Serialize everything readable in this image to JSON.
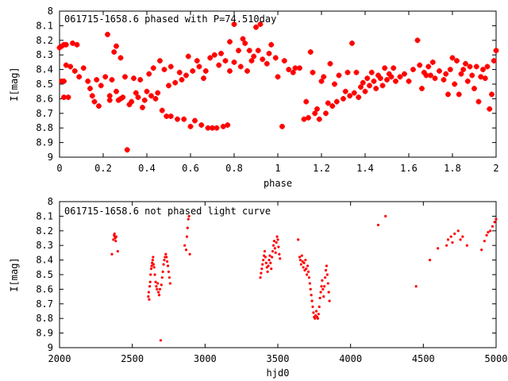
{
  "chart_data": [
    {
      "type": "scatter",
      "title": "061715-1658.6 phased with P=74.510day",
      "xlabel": "phase",
      "ylabel": "I[mag]",
      "xlim": [
        0,
        2
      ],
      "ylim": [
        9,
        8
      ],
      "y_inverted": true,
      "xticks": [
        "0",
        "0.2",
        "0.4",
        "0.6",
        "0.8",
        "1",
        "1.2",
        "1.4",
        "1.6",
        "1.8",
        "2"
      ],
      "yticks": [
        "8",
        "8.1",
        "8.2",
        "8.3",
        "8.4",
        "8.5",
        "8.6",
        "8.7",
        "8.8",
        "8.9",
        "9"
      ],
      "marker_color": "#ff0000",
      "points": [
        [
          0.0,
          8.25
        ],
        [
          0.01,
          8.24
        ],
        [
          0.02,
          8.23
        ],
        [
          0.03,
          8.23
        ],
        [
          0.01,
          8.48
        ],
        [
          0.02,
          8.48
        ],
        [
          0.03,
          8.37
        ],
        [
          0.05,
          8.38
        ],
        [
          0.02,
          8.59
        ],
        [
          0.04,
          8.59
        ],
        [
          0.06,
          8.22
        ],
        [
          0.08,
          8.23
        ],
        [
          0.07,
          8.41
        ],
        [
          0.09,
          8.45
        ],
        [
          0.11,
          8.39
        ],
        [
          0.13,
          8.48
        ],
        [
          0.14,
          8.53
        ],
        [
          0.15,
          8.58
        ],
        [
          0.16,
          8.62
        ],
        [
          0.17,
          8.47
        ],
        [
          0.18,
          8.65
        ],
        [
          0.19,
          8.51
        ],
        [
          0.21,
          8.45
        ],
        [
          0.22,
          8.16
        ],
        [
          0.23,
          8.58
        ],
        [
          0.23,
          8.61
        ],
        [
          0.24,
          8.47
        ],
        [
          0.25,
          8.28
        ],
        [
          0.26,
          8.24
        ],
        [
          0.26,
          8.55
        ],
        [
          0.27,
          8.61
        ],
        [
          0.28,
          8.6
        ],
        [
          0.28,
          8.32
        ],
        [
          0.29,
          8.59
        ],
        [
          0.3,
          8.45
        ],
        [
          0.31,
          8.95
        ],
        [
          0.32,
          8.64
        ],
        [
          0.33,
          8.62
        ],
        [
          0.34,
          8.46
        ],
        [
          0.35,
          8.56
        ],
        [
          0.36,
          8.59
        ],
        [
          0.37,
          8.47
        ],
        [
          0.38,
          8.66
        ],
        [
          0.39,
          8.61
        ],
        [
          0.4,
          8.55
        ],
        [
          0.41,
          8.43
        ],
        [
          0.42,
          8.58
        ],
        [
          0.43,
          8.39
        ],
        [
          0.44,
          8.6
        ],
        [
          0.45,
          8.56
        ],
        [
          0.46,
          8.34
        ],
        [
          0.47,
          8.68
        ],
        [
          0.48,
          8.4
        ],
        [
          0.49,
          8.72
        ],
        [
          0.5,
          8.51
        ],
        [
          0.51,
          8.38
        ],
        [
          0.51,
          8.72
        ],
        [
          0.53,
          8.49
        ],
        [
          0.54,
          8.74
        ],
        [
          0.55,
          8.42
        ],
        [
          0.56,
          8.47
        ],
        [
          0.57,
          8.74
        ],
        [
          0.58,
          8.44
        ],
        [
          0.59,
          8.31
        ],
        [
          0.6,
          8.79
        ],
        [
          0.61,
          8.41
        ],
        [
          0.62,
          8.75
        ],
        [
          0.63,
          8.34
        ],
        [
          0.64,
          8.38
        ],
        [
          0.65,
          8.78
        ],
        [
          0.66,
          8.46
        ],
        [
          0.67,
          8.41
        ],
        [
          0.68,
          8.8
        ],
        [
          0.69,
          8.32
        ],
        [
          0.7,
          8.8
        ],
        [
          0.71,
          8.3
        ],
        [
          0.72,
          8.8
        ],
        [
          0.73,
          8.37
        ],
        [
          0.74,
          8.29
        ],
        [
          0.75,
          8.79
        ],
        [
          0.76,
          8.34
        ],
        [
          0.77,
          8.78
        ],
        [
          0.78,
          8.21
        ],
        [
          0.78,
          8.41
        ],
        [
          0.8,
          8.35
        ],
        [
          0.8,
          8.09
        ],
        [
          0.82,
          8.27
        ],
        [
          0.83,
          8.38
        ],
        [
          0.84,
          8.19
        ],
        [
          0.85,
          8.22
        ],
        [
          0.86,
          8.41
        ],
        [
          0.87,
          8.27
        ],
        [
          0.88,
          8.34
        ],
        [
          0.89,
          8.31
        ],
        [
          0.9,
          8.11
        ],
        [
          0.91,
          8.27
        ],
        [
          0.92,
          8.09
        ],
        [
          0.93,
          8.33
        ],
        [
          0.95,
          8.36
        ],
        [
          0.96,
          8.29
        ],
        [
          0.97,
          8.23
        ],
        [
          0.99,
          8.32
        ],
        [
          1.0,
          8.45
        ],
        [
          1.02,
          8.79
        ],
        [
          1.03,
          8.34
        ],
        [
          1.05,
          8.4
        ],
        [
          1.07,
          8.42
        ],
        [
          1.08,
          8.39
        ],
        [
          1.1,
          8.39
        ],
        [
          1.12,
          8.74
        ],
        [
          1.13,
          8.62
        ],
        [
          1.14,
          8.73
        ],
        [
          1.15,
          8.28
        ],
        [
          1.16,
          8.42
        ],
        [
          1.17,
          8.7
        ],
        [
          1.18,
          8.67
        ],
        [
          1.19,
          8.74
        ],
        [
          1.2,
          8.48
        ],
        [
          1.21,
          8.45
        ],
        [
          1.22,
          8.7
        ],
        [
          1.23,
          8.63
        ],
        [
          1.24,
          8.36
        ],
        [
          1.25,
          8.65
        ],
        [
          1.26,
          8.5
        ],
        [
          1.27,
          8.62
        ],
        [
          1.28,
          8.44
        ],
        [
          1.3,
          8.6
        ],
        [
          1.31,
          8.55
        ],
        [
          1.32,
          8.42
        ],
        [
          1.33,
          8.58
        ],
        [
          1.34,
          8.22
        ],
        [
          1.35,
          8.56
        ],
        [
          1.36,
          8.42
        ],
        [
          1.37,
          8.59
        ],
        [
          1.38,
          8.52
        ],
        [
          1.39,
          8.49
        ],
        [
          1.4,
          8.55
        ],
        [
          1.41,
          8.46
        ],
        [
          1.42,
          8.51
        ],
        [
          1.43,
          8.42
        ],
        [
          1.44,
          8.48
        ],
        [
          1.45,
          8.53
        ],
        [
          1.46,
          8.44
        ],
        [
          1.47,
          8.46
        ],
        [
          1.48,
          8.51
        ],
        [
          1.49,
          8.39
        ],
        [
          1.5,
          8.47
        ],
        [
          1.51,
          8.43
        ],
        [
          1.52,
          8.45
        ],
        [
          1.53,
          8.39
        ],
        [
          1.54,
          8.48
        ],
        [
          1.56,
          8.45
        ],
        [
          1.58,
          8.43
        ],
        [
          1.6,
          8.48
        ],
        [
          1.62,
          8.4
        ],
        [
          1.64,
          8.2
        ],
        [
          1.65,
          8.37
        ],
        [
          1.66,
          8.53
        ],
        [
          1.67,
          8.42
        ],
        [
          1.68,
          8.44
        ],
        [
          1.69,
          8.38
        ],
        [
          1.7,
          8.44
        ],
        [
          1.71,
          8.35
        ],
        [
          1.72,
          8.46
        ],
        [
          1.74,
          8.41
        ],
        [
          1.76,
          8.47
        ],
        [
          1.77,
          8.43
        ],
        [
          1.78,
          8.57
        ],
        [
          1.79,
          8.4
        ],
        [
          1.8,
          8.32
        ],
        [
          1.81,
          8.5
        ],
        [
          1.82,
          8.34
        ],
        [
          1.83,
          8.57
        ],
        [
          1.84,
          8.43
        ],
        [
          1.85,
          8.4
        ],
        [
          1.86,
          8.36
        ],
        [
          1.87,
          8.48
        ],
        [
          1.88,
          8.38
        ],
        [
          1.89,
          8.44
        ],
        [
          1.9,
          8.53
        ],
        [
          1.91,
          8.38
        ],
        [
          1.92,
          8.62
        ],
        [
          1.93,
          8.45
        ],
        [
          1.94,
          8.4
        ],
        [
          1.95,
          8.46
        ],
        [
          1.96,
          8.38
        ],
        [
          1.97,
          8.67
        ],
        [
          1.98,
          8.57
        ],
        [
          1.99,
          8.34
        ],
        [
          2.0,
          8.27
        ]
      ]
    },
    {
      "type": "scatter",
      "title": "061715-1658.6 not phased light curve",
      "xlabel": "hjd0",
      "ylabel": "I[mag]",
      "xlim": [
        2000,
        5000
      ],
      "ylim": [
        9,
        8
      ],
      "y_inverted": true,
      "xticks": [
        "2000",
        "2500",
        "3000",
        "3500",
        "4000",
        "4500",
        "5000"
      ],
      "yticks": [
        "8",
        "8.1",
        "8.2",
        "8.3",
        "8.4",
        "8.5",
        "8.6",
        "8.7",
        "8.8",
        "8.9",
        "9"
      ],
      "marker_color": "#ff0000",
      "points": [
        [
          2360,
          8.36
        ],
        [
          2370,
          8.26
        ],
        [
          2375,
          8.23
        ],
        [
          2378,
          8.22
        ],
        [
          2380,
          8.24
        ],
        [
          2383,
          8.25
        ],
        [
          2386,
          8.27
        ],
        [
          2390,
          8.24
        ],
        [
          2400,
          8.34
        ],
        [
          2610,
          8.65
        ],
        [
          2613,
          8.62
        ],
        [
          2616,
          8.67
        ],
        [
          2620,
          8.58
        ],
        [
          2623,
          8.55
        ],
        [
          2626,
          8.5
        ],
        [
          2630,
          8.46
        ],
        [
          2633,
          8.44
        ],
        [
          2636,
          8.42
        ],
        [
          2640,
          8.4
        ],
        [
          2643,
          8.38
        ],
        [
          2646,
          8.43
        ],
        [
          2650,
          8.45
        ],
        [
          2655,
          8.5
        ],
        [
          2660,
          8.55
        ],
        [
          2665,
          8.58
        ],
        [
          2670,
          8.6
        ],
        [
          2675,
          8.56
        ],
        [
          2680,
          8.62
        ],
        [
          2685,
          8.64
        ],
        [
          2690,
          8.6
        ],
        [
          2695,
          8.95
        ],
        [
          2700,
          8.57
        ],
        [
          2705,
          8.52
        ],
        [
          2710,
          8.48
        ],
        [
          2715,
          8.43
        ],
        [
          2720,
          8.4
        ],
        [
          2725,
          8.38
        ],
        [
          2730,
          8.36
        ],
        [
          2735,
          8.38
        ],
        [
          2740,
          8.41
        ],
        [
          2745,
          8.44
        ],
        [
          2750,
          8.48
        ],
        [
          2755,
          8.52
        ],
        [
          2760,
          8.56
        ],
        [
          2860,
          8.3
        ],
        [
          2870,
          8.33
        ],
        [
          2875,
          8.24
        ],
        [
          2880,
          8.18
        ],
        [
          2885,
          8.12
        ],
        [
          2890,
          8.1
        ],
        [
          2895,
          8.36
        ],
        [
          3380,
          8.52
        ],
        [
          3385,
          8.49
        ],
        [
          3390,
          8.46
        ],
        [
          3395,
          8.43
        ],
        [
          3400,
          8.4
        ],
        [
          3405,
          8.37
        ],
        [
          3410,
          8.34
        ],
        [
          3415,
          8.38
        ],
        [
          3420,
          8.42
        ],
        [
          3425,
          8.45
        ],
        [
          3430,
          8.48
        ],
        [
          3435,
          8.44
        ],
        [
          3440,
          8.4
        ],
        [
          3445,
          8.37
        ],
        [
          3450,
          8.42
        ],
        [
          3455,
          8.46
        ],
        [
          3460,
          8.38
        ],
        [
          3465,
          8.34
        ],
        [
          3470,
          8.3
        ],
        [
          3475,
          8.27
        ],
        [
          3480,
          8.32
        ],
        [
          3485,
          8.35
        ],
        [
          3490,
          8.28
        ],
        [
          3495,
          8.24
        ],
        [
          3500,
          8.26
        ],
        [
          3505,
          8.31
        ],
        [
          3510,
          8.36
        ],
        [
          3515,
          8.39
        ],
        [
          3640,
          8.26
        ],
        [
          3650,
          8.38
        ],
        [
          3655,
          8.4
        ],
        [
          3660,
          8.43
        ],
        [
          3665,
          8.37
        ],
        [
          3670,
          8.41
        ],
        [
          3675,
          8.45
        ],
        [
          3680,
          8.42
        ],
        [
          3685,
          8.47
        ],
        [
          3690,
          8.4
        ],
        [
          3695,
          8.46
        ],
        [
          3700,
          8.5
        ],
        [
          3705,
          8.44
        ],
        [
          3710,
          8.48
        ],
        [
          3715,
          8.52
        ],
        [
          3720,
          8.56
        ],
        [
          3725,
          8.6
        ],
        [
          3730,
          8.64
        ],
        [
          3735,
          8.68
        ],
        [
          3740,
          8.72
        ],
        [
          3745,
          8.76
        ],
        [
          3750,
          8.79
        ],
        [
          3755,
          8.8
        ],
        [
          3760,
          8.78
        ],
        [
          3765,
          8.75
        ],
        [
          3770,
          8.79
        ],
        [
          3775,
          8.8
        ],
        [
          3780,
          8.77
        ],
        [
          3785,
          8.72
        ],
        [
          3790,
          8.66
        ],
        [
          3795,
          8.62
        ],
        [
          3800,
          8.58
        ],
        [
          3805,
          8.54
        ],
        [
          3810,
          8.6
        ],
        [
          3815,
          8.65
        ],
        [
          3820,
          8.58
        ],
        [
          3825,
          8.52
        ],
        [
          3830,
          8.47
        ],
        [
          3835,
          8.44
        ],
        [
          3840,
          8.5
        ],
        [
          3845,
          8.56
        ],
        [
          3850,
          8.62
        ],
        [
          3855,
          8.68
        ],
        [
          4190,
          8.16
        ],
        [
          4240,
          8.1
        ],
        [
          4450,
          8.58
        ],
        [
          4545,
          8.4
        ],
        [
          4600,
          8.32
        ],
        [
          4660,
          8.3
        ],
        [
          4670,
          8.26
        ],
        [
          4690,
          8.24
        ],
        [
          4700,
          8.28
        ],
        [
          4715,
          8.22
        ],
        [
          4740,
          8.2
        ],
        [
          4755,
          8.26
        ],
        [
          4770,
          8.24
        ],
        [
          4800,
          8.3
        ],
        [
          4900,
          8.33
        ],
        [
          4920,
          8.27
        ],
        [
          4935,
          8.23
        ],
        [
          4945,
          8.21
        ],
        [
          4960,
          8.2
        ],
        [
          4975,
          8.17
        ],
        [
          4990,
          8.14
        ],
        [
          5000,
          8.12
        ]
      ]
    }
  ]
}
